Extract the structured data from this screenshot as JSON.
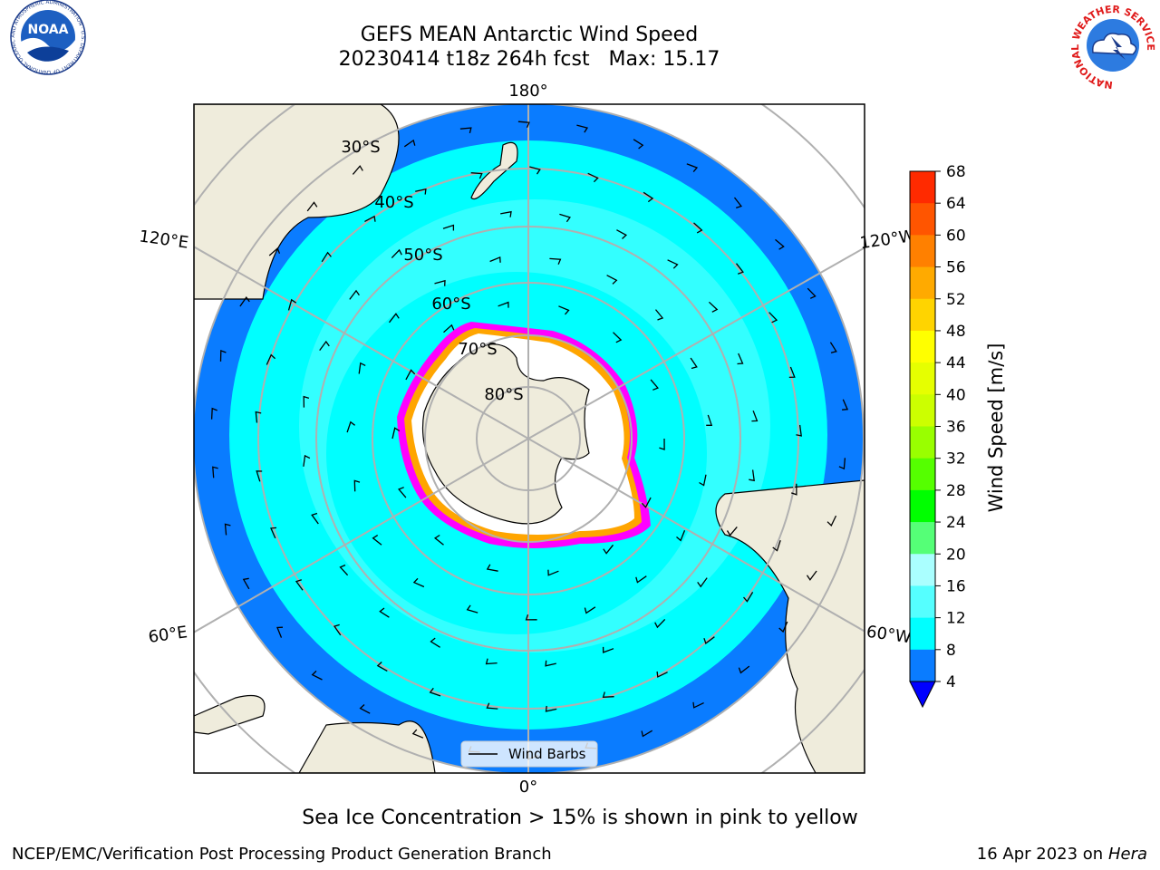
{
  "header": {
    "title": "GEFS MEAN Antarctic Wind Speed",
    "subtitle": "20230414 t18z 264h fcst   Max: 15.17"
  },
  "logos": {
    "left": {
      "name": "noara-logo",
      "text": "NOAA",
      "ring_text": "NATIONAL OCEANIC AND ATMOSPHERIC ADMINISTRATION · U.S. DEPARTMENT OF COMMERCE"
    },
    "right": {
      "name": "nws-logo",
      "ring_text": "NATIONAL WEATHER SERVICE"
    }
  },
  "map": {
    "longitude_labels": [
      "180°",
      "120°E",
      "120°W",
      "60°E",
      "60°W",
      "0°"
    ],
    "latitude_labels": [
      "30°S",
      "40°S",
      "50°S",
      "60°S",
      "70°S",
      "80°S"
    ],
    "legend_label": "Wind Barbs",
    "colors": {
      "land": "#efecdc",
      "ice_shelf": "#ffffff",
      "ocean_4_8": "#0a7cff",
      "ocean_8_12": "#00ffff",
      "ocean_12_16": "#55ffff",
      "sea_ice_edge": [
        "#ff00ff",
        "#ffa500",
        "#ffff00"
      ]
    }
  },
  "colorbar": {
    "label": "Wind Speed [m/s]",
    "ticks": [
      "68",
      "64",
      "60",
      "56",
      "52",
      "48",
      "44",
      "40",
      "36",
      "32",
      "28",
      "24",
      "20",
      "16",
      "12",
      "8",
      "4"
    ],
    "colors": [
      "#ff0000",
      "#ff2a00",
      "#ff5500",
      "#ff8000",
      "#ffaa00",
      "#ffd400",
      "#ffff00",
      "#e6ff00",
      "#ccff00",
      "#99ff00",
      "#55ff00",
      "#00ff00",
      "#55ff77",
      "#aaffff",
      "#55ffff",
      "#00ffff",
      "#0a7cff"
    ],
    "under_color": "#0000ff"
  },
  "footer": {
    "note": "Sea Ice Concentration > 15% is shown in pink to yellow",
    "credit": "NCEP/EMC/Verification Post Processing Product Generation Branch",
    "date": "16 Apr 2023 on ",
    "machine": "Hera"
  }
}
